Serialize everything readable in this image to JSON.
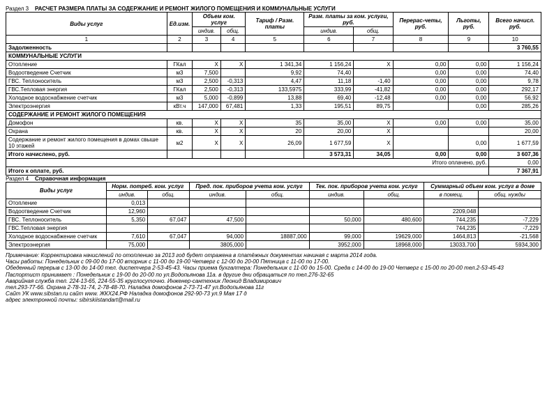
{
  "section3": {
    "label": "Раздел 3",
    "title": "РАСЧЕТ РАЗМЕРА ПЛАТЫ ЗА СОДЕРЖАНИЕ И РЕМОНТ ЖИЛОГО ПОМЕЩЕНИЯ И КОММУНАЛЬНЫЕ УСЛУГИ",
    "headers": {
      "vid": "Виды услуг",
      "ed": "Ед.изм.",
      "obem": "Объем ком. услуг",
      "tarif": "Тариф / Разм. платы",
      "razm": "Разм. платы за ком. услуги, руб.",
      "pere": "Перерас-четы, руб.",
      "lgot": "Льготы, руб.",
      "vsego": "Всего начисл. руб.",
      "indiv": "индив.",
      "obsh": "общ."
    },
    "colnums": [
      "1",
      "2",
      "3",
      "4",
      "5",
      "6",
      "7",
      "8",
      "9",
      "10"
    ],
    "rows": {
      "zadolzh": {
        "name": "Задолженность",
        "vsego": "3 760,55"
      },
      "kommun_hdr": "КОММУНАЛЬНЫЕ УСЛУГИ",
      "otopl": {
        "name": "Отопление",
        "ed": "ГКал",
        "oi": "X",
        "oo": "X",
        "tarif": "1 341,34",
        "ri": "1 156,24",
        "ro": "X",
        "pere": "0,00",
        "lgot": "0,00",
        "vsego": "1 156,24"
      },
      "vodootv": {
        "name": "Водоотведение Счетчик",
        "ed": "м3",
        "oi": "7,500",
        "oo": "",
        "tarif": "9,92",
        "ri": "74,40",
        "ro": "",
        "pere": "0,00",
        "lgot": "0,00",
        "vsego": "74,40"
      },
      "gvs_tep": {
        "name": "ГВС. Теплоноситель",
        "ed": "м3",
        "oi": "2,500",
        "oo": "-0,313",
        "tarif": "4,47",
        "ri": "11,18",
        "ro": "-1,40",
        "pere": "0,00",
        "lgot": "0,00",
        "vsego": "9,78"
      },
      "gvs_ener": {
        "name": "ГВС.Тепловая энергия",
        "ed": "ГКал",
        "oi": "2,500",
        "oo": "-0,313",
        "tarif": "133,5975",
        "ri": "333,99",
        "ro": "-41,82",
        "pere": "0,00",
        "lgot": "0,00",
        "vsego": "292,17"
      },
      "hol_vod": {
        "name": "Холодное водоснабжение счетчик",
        "ed": "м3",
        "oi": "5,000",
        "oo": "-0,899",
        "tarif": "13,88",
        "ri": "69,40",
        "ro": "-12,48",
        "pere": "0,00",
        "lgot": "0,00",
        "vsego": "56,92"
      },
      "elektro": {
        "name": "Электроэнергия",
        "ed": "кВт.ч",
        "oi": "147,000",
        "oo": "67,481",
        "tarif": "1,33",
        "ri": "195,51",
        "ro": "89,75",
        "pere": "",
        "lgot": "0,00",
        "vsego": "285,26"
      },
      "sodr_hdr": "СОДЕРЖАНИЕ И РЕМОНТ ЖИЛОГО ПОМЕЩЕНИЯ",
      "domofon": {
        "name": "Домофон",
        "ed": "кв.",
        "oi": "X",
        "oo": "X",
        "tarif": "35",
        "ri": "35,00",
        "ro": "X",
        "pere": "0,00",
        "lgot": "0,00",
        "vsego": "35,00"
      },
      "ohrana": {
        "name": "Охрана",
        "ed": "кв.",
        "oi": "X",
        "oo": "X",
        "tarif": "20",
        "ri": "20,00",
        "ro": "X",
        "pere": "",
        "lgot": "",
        "vsego": "20,00"
      },
      "soderzh": {
        "name": "Содержание и ремонт жилого помещения в домах свыше 10 этажей",
        "ed": "м2",
        "oi": "X",
        "oo": "X",
        "tarif": "26,09",
        "ri": "1 677,59",
        "ro": "X",
        "pere": "",
        "lgot": "0,00",
        "vsego": "1 677,59"
      },
      "itogo_nach": {
        "name": "Итого начислено, руб.",
        "ri": "3 573,31",
        "ro": "34,05",
        "pere": "0,00",
        "lgot": "0,00",
        "vsego": "3 607,36"
      },
      "itogo_opl_lbl": "Итого оплачено, руб.",
      "itogo_opl_val": "0,00",
      "itogo_k_opl": {
        "name": "Итого к оплате, руб.",
        "vsego": "7 367,91"
      }
    }
  },
  "section4": {
    "label": "Раздел 4",
    "title": "Справочная информация",
    "headers": {
      "vid": "Виды услуг",
      "norm": "Норм. потреб. ком. услуг",
      "pred": "Пред. пок. приборов учета ком. услуг",
      "tek": "Тек. пок. приборов учета ком. услуг",
      "summ": "Суммарный объем ком. услуг в доме",
      "indiv": "индив.",
      "obsh": "общ.",
      "vpom": "в помещ.",
      "obshn": "общ. нужды"
    },
    "rows": {
      "otopl": {
        "name": "Отопление",
        "ni": "0,013"
      },
      "vodootv": {
        "name": "Водоотведение Счетчик",
        "ni": "12,960",
        "sp": "2209,048"
      },
      "gvs_tep": {
        "name": "ГВС. Теплоноситель",
        "ni": "5,350",
        "no": "67,047",
        "pi": "47,500",
        "ti": "50,000",
        "to": "480,600",
        "sp": "744,235",
        "son": "-7,229"
      },
      "gvs_ener": {
        "name": "ГВС.Тепловая энергия",
        "sp": "744,235",
        "son": "-7,229"
      },
      "hol_vod": {
        "name": "Холодное водоснабжение счетчик",
        "ni": "7,610",
        "no": "67,047",
        "pi": "94,000",
        "po": "18887,000",
        "ti": "99,000",
        "to": "19629,000",
        "sp": "1464,813",
        "son": "-21,568"
      },
      "elektro": {
        "name": "Электроэнергия",
        "ni": "75,000",
        "pi": "3805,000",
        "ti": "3952,000",
        "to": "18968,000",
        "sp": "13033,700",
        "son": "5934,300"
      }
    }
  },
  "notes": {
    "l1": "Примечание: Корректировка начислений по отоплению за 2013 год будет отражена в платёжных документах начиная с марта 2014 года.",
    "l2": "Часы работы: Понедельник с 09-00 до 17-00 вторник с 11-00 до 19-00 Четверг с 12-00 до 20-00 Пятница с 11-00 по 17-00.",
    "l3": "Обеденный перерыв с 13-00 до 14-00  тел. диспетчера 2-53-45-43. Часы приема бухгалтера: Понедельник с 11-00 до 15-00. Среда с 14-00 до 19-00 Четверг с 15-00 по 20-00 тел.2-53-45-43",
    "l4": "Паспортист принимает : Понедельник с 19-00 до 20-00 по ул.Водопьянова 11а. в другие дни обращаться по  тел.276-32-65",
    "l5": "Аварийная служба  тел.  224-13-65,  224-55-35 круглосуточно.  Инженер-сантехник Леонид Владимирович",
    "l6": "тел.293-77-66. Охрана  2-78-31-74,  2-78-48-70.   Наладка домофонов 2-73-71-47  ул.Водопьянова 11г",
    "l7": "Сайт УК  www.sibstan.ru  сайт www. ЖКХ24.РФ     Наладка домофонов 292-90-73 ул.9  Мая 17 д",
    "l8": "адрес электронной почты: sibirskiistandart@mail.ru"
  }
}
